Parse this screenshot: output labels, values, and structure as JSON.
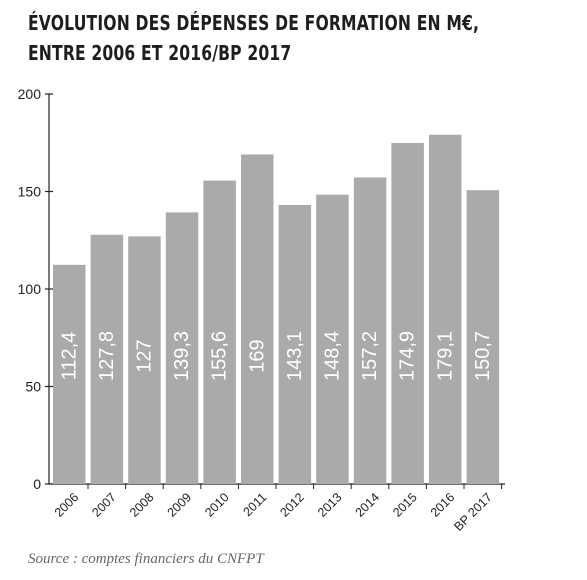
{
  "title_lines": [
    "ÉVOLUTION DES DÉPENSES DE FORMATION EN M€,",
    "ENTRE 2006 ET 2016/BP 2017"
  ],
  "source": "Source : comptes financiers du CNFPT",
  "chart_data": {
    "type": "bar",
    "title": "ÉVOLUTION DES DÉPENSES DE FORMATION EN M€, ENTRE 2006 ET 2016/BP 2017",
    "categories": [
      "2006",
      "2007",
      "2008",
      "2009",
      "2010",
      "2011",
      "2012",
      "2013",
      "2014",
      "2015",
      "2016",
      "BP 2017"
    ],
    "values": [
      112.4,
      127.8,
      127,
      139.3,
      155.6,
      169,
      143.1,
      148.4,
      157.2,
      174.9,
      179.1,
      150.7
    ],
    "value_labels": [
      "112,4",
      "127,8",
      "127",
      "139,3",
      "155,6",
      "169",
      "143,1",
      "148,4",
      "157,2",
      "174,9",
      "179,1",
      "150,7"
    ],
    "yticks": [
      0,
      50,
      100,
      150,
      200
    ],
    "ylim": [
      0,
      200
    ],
    "grid": false,
    "bar_color": "#aaaaaa",
    "label_color": "#ffffff"
  }
}
